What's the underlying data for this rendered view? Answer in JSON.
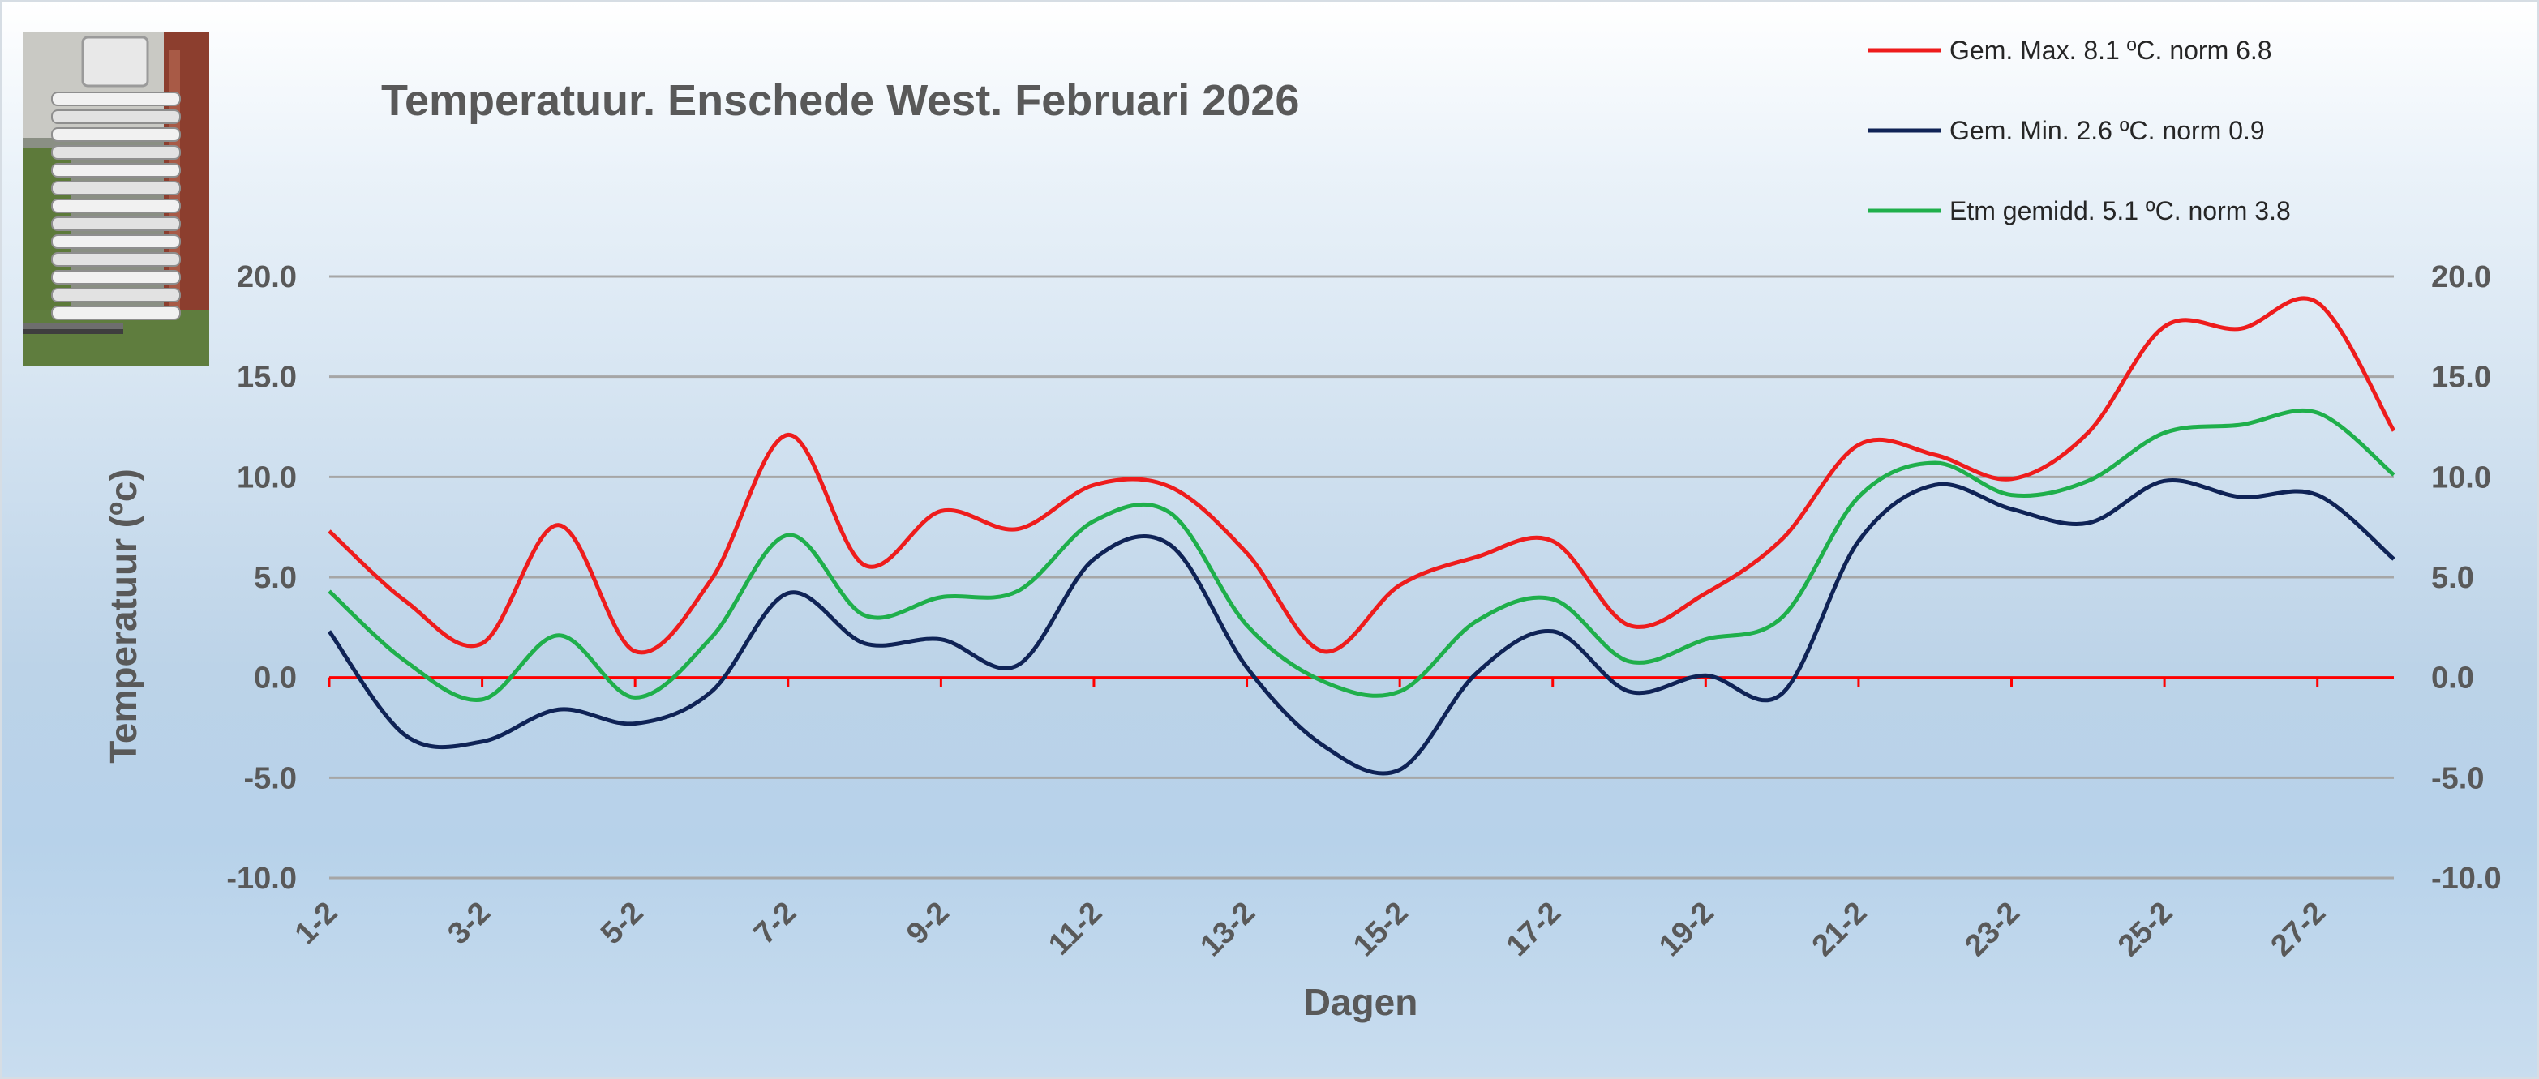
{
  "chart_data": {
    "type": "line",
    "title": "Temperatuur. Enschede West. Februari 2026",
    "xlabel": "Dagen",
    "ylabel": "Temperatuur (ºc)",
    "ylim": [
      -10,
      20
    ],
    "yticks": [
      -10,
      -5,
      0,
      5,
      10,
      15,
      20
    ],
    "ytick_labels": [
      "-10.0",
      "-5.0",
      "0.0",
      "5.0",
      "10.0",
      "15.0",
      "20.0"
    ],
    "grid": true,
    "legend_position": "top-right",
    "x": [
      "1-2",
      "2-2",
      "3-2",
      "4-2",
      "5-2",
      "6-2",
      "7-2",
      "8-2",
      "9-2",
      "10-2",
      "11-2",
      "12-2",
      "13-2",
      "14-2",
      "15-2",
      "16-2",
      "17-2",
      "18-2",
      "19-2",
      "20-2",
      "21-2",
      "22-2",
      "23-2",
      "24-2",
      "25-2",
      "26-2",
      "27-2",
      "28-2"
    ],
    "xtick_labels": [
      "1-2",
      "3-2",
      "5-2",
      "7-2",
      "9-2",
      "11-2",
      "13-2",
      "15-2",
      "17-2",
      "19-2",
      "21-2",
      "23-2",
      "25-2",
      "27-2"
    ],
    "series": [
      {
        "name": "Gem. Max. 8.1  ºC. norm 6.8",
        "color": "#ee1c1c",
        "values": [
          7.3,
          3.8,
          1.7,
          7.6,
          1.3,
          4.9,
          12.1,
          5.6,
          8.3,
          7.4,
          9.6,
          9.5,
          6.2,
          1.3,
          4.6,
          6.0,
          6.8,
          2.6,
          4.2,
          6.9,
          11.6,
          11.1,
          9.9,
          12.2,
          17.5,
          17.4,
          18.7,
          12.3
        ]
      },
      {
        "name": "Gem. Min. 2.6  ºC. norm 0.9",
        "color": "#0f2356",
        "values": [
          2.3,
          -2.9,
          -3.2,
          -1.6,
          -2.3,
          -0.7,
          4.2,
          1.7,
          1.9,
          0.6,
          5.9,
          6.6,
          0.5,
          -3.4,
          -4.6,
          0.2,
          2.3,
          -0.7,
          0.1,
          -0.8,
          6.8,
          9.6,
          8.4,
          7.7,
          9.8,
          9.0,
          9.1,
          5.9
        ]
      },
      {
        "name": "Etm gemidd. 5.1  ºC. norm 3.8",
        "color": "#1faf4b",
        "values": [
          4.3,
          0.8,
          -1.1,
          2.1,
          -1.0,
          2.0,
          7.1,
          3.1,
          4.0,
          4.3,
          7.8,
          8.2,
          2.6,
          -0.2,
          -0.7,
          2.8,
          3.9,
          0.8,
          1.9,
          3.0,
          9.0,
          10.7,
          9.1,
          9.8,
          12.2,
          12.6,
          13.2,
          10.1
        ]
      }
    ],
    "zero_line_color": "#ff0000"
  }
}
